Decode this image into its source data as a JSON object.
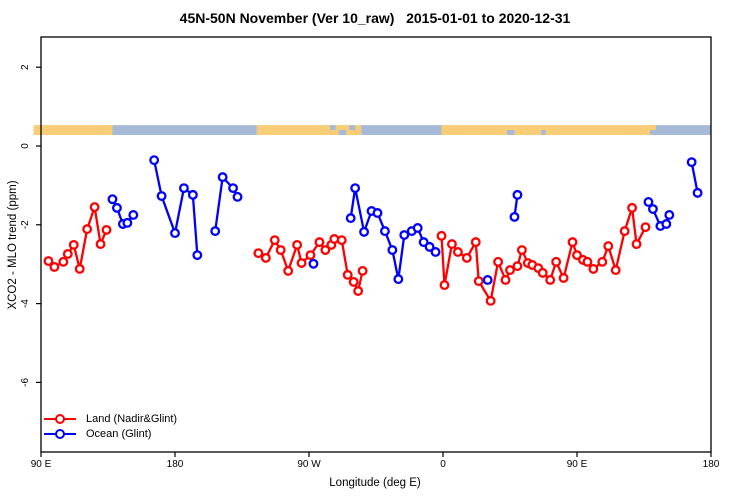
{
  "chart_data": {
    "type": "line",
    "title": "45N-50N November (Ver 10_raw)   2015-01-01 to 2020-12-31",
    "xlabel": "Longitude (deg E)",
    "ylabel": "XCO2 - MLO trend (ppm)",
    "x_axis": {
      "range_deg": [
        90,
        540
      ],
      "ticks": [
        {
          "t": 90,
          "label": "90 E"
        },
        {
          "t": 180,
          "label": "180"
        },
        {
          "t": 270,
          "label": "90 W"
        },
        {
          "t": 360,
          "label": "0"
        },
        {
          "t": 450,
          "label": "90 E"
        },
        {
          "t": 540,
          "label": "180"
        }
      ]
    },
    "y_axis": {
      "range": [
        -7.8,
        2.8
      ],
      "ticks": [
        {
          "v": 2,
          "label": "2"
        },
        {
          "v": 0,
          "label": "0"
        },
        {
          "v": -2,
          "label": "-2"
        },
        {
          "v": -4,
          "label": "-4"
        },
        {
          "v": -6,
          "label": "-6"
        }
      ]
    },
    "map_strip": {
      "v_range": [
        0.28,
        0.53
      ],
      "land_color": "#F9CD76",
      "ocean_color": "#A6BAD8",
      "segments": [
        {
          "type": "land",
          "from": 85,
          "to": 138
        },
        {
          "type": "ocean",
          "from": 138,
          "to": 235
        },
        {
          "type": "land",
          "from": 235,
          "to": 305
        },
        {
          "type": "ocean",
          "from": 305,
          "to": 359
        },
        {
          "type": "land",
          "from": 359,
          "to": 499
        },
        {
          "type": "ocean",
          "from": 499,
          "to": 540
        }
      ],
      "patches": [
        {
          "type": "ocean",
          "from": 284,
          "to": 288,
          "pos": "top"
        },
        {
          "type": "ocean",
          "from": 290,
          "to": 295,
          "pos": "bottom"
        },
        {
          "type": "ocean",
          "from": 297,
          "to": 301,
          "pos": "top"
        },
        {
          "type": "ocean",
          "from": 403,
          "to": 408,
          "pos": "bottom"
        },
        {
          "type": "ocean",
          "from": 426,
          "to": 429,
          "pos": "bottom"
        },
        {
          "type": "land",
          "from": 499,
          "to": 503,
          "pos": "top"
        }
      ]
    },
    "series": [
      {
        "name": "Land (Nadir&Glint)",
        "color": "#ff0000",
        "segments": [
          [
            [
              95,
              -2.92
            ],
            [
              99,
              -3.07
            ],
            [
              105,
              -2.94
            ],
            [
              108,
              -2.74
            ],
            [
              112,
              -2.51
            ],
            [
              116,
              -3.12
            ],
            [
              121,
              -2.11
            ],
            [
              126,
              -1.55
            ],
            [
              130,
              -2.49
            ],
            [
              134,
              -2.13
            ]
          ],
          [
            [
              236,
              -2.72
            ],
            [
              241,
              -2.84
            ],
            [
              247,
              -2.39
            ],
            [
              251,
              -2.64
            ],
            [
              256,
              -3.17
            ],
            [
              262,
              -2.51
            ],
            [
              265,
              -2.97
            ],
            [
              271,
              -2.77
            ],
            [
              277,
              -2.44
            ],
            [
              281,
              -2.64
            ],
            [
              285,
              -2.51
            ],
            [
              287,
              -2.36
            ],
            [
              292,
              -2.39
            ],
            [
              296,
              -3.27
            ],
            [
              300,
              -3.45
            ],
            [
              303,
              -3.68
            ],
            [
              306,
              -3.17
            ]
          ],
          [
            [
              359,
              -2.28
            ],
            [
              361,
              -3.53
            ],
            [
              366,
              -2.49
            ],
            [
              370,
              -2.69
            ],
            [
              376,
              -2.84
            ],
            [
              382,
              -2.44
            ],
            [
              384,
              -3.43
            ],
            [
              392,
              -3.93
            ],
            [
              397,
              -2.94
            ],
            [
              402,
              -3.4
            ],
            [
              405,
              -3.15
            ],
            [
              410,
              -3.05
            ],
            [
              413,
              -2.64
            ],
            [
              417,
              -2.97
            ],
            [
              420,
              -3.02
            ],
            [
              424,
              -3.1
            ],
            [
              427,
              -3.22
            ],
            [
              432,
              -3.4
            ],
            [
              436,
              -2.94
            ],
            [
              441,
              -3.35
            ],
            [
              447,
              -2.44
            ],
            [
              450,
              -2.77
            ],
            [
              454,
              -2.89
            ],
            [
              457,
              -2.94
            ],
            [
              461,
              -3.12
            ],
            [
              467,
              -2.94
            ],
            [
              471,
              -2.54
            ],
            [
              476,
              -3.15
            ],
            [
              482,
              -2.16
            ],
            [
              487,
              -1.57
            ],
            [
              490,
              -2.49
            ],
            [
              496,
              -2.06
            ]
          ]
        ]
      },
      {
        "name": "Ocean (Glint)",
        "color": "#0000ff",
        "segments": [
          [
            [
              138,
              -1.35
            ],
            [
              141,
              -1.57
            ],
            [
              145,
              -1.98
            ],
            [
              148,
              -1.95
            ],
            [
              152,
              -1.75
            ]
          ],
          [
            [
              166,
              -0.36
            ],
            [
              171,
              -1.27
            ],
            [
              180,
              -2.21
            ],
            [
              186,
              -1.07
            ],
            [
              192,
              -1.24
            ],
            [
              195,
              -2.77
            ]
          ],
          [
            [
              207,
              -2.16
            ],
            [
              212,
              -0.79
            ],
            [
              219,
              -1.07
            ],
            [
              222,
              -1.29
            ]
          ],
          [
            [
              273,
              -2.99
            ]
          ],
          [
            [
              298,
              -1.83
            ],
            [
              301,
              -1.07
            ],
            [
              307,
              -2.18
            ],
            [
              312,
              -1.65
            ],
            [
              316,
              -1.7
            ],
            [
              321,
              -2.16
            ],
            [
              326,
              -2.64
            ],
            [
              330,
              -3.38
            ],
            [
              334,
              -2.26
            ],
            [
              339,
              -2.16
            ],
            [
              343,
              -2.08
            ],
            [
              347,
              -2.44
            ],
            [
              351,
              -2.56
            ],
            [
              355,
              -2.69
            ]
          ],
          [
            [
              390,
              -3.4
            ]
          ],
          [
            [
              408,
              -1.8
            ],
            [
              410,
              -1.24
            ]
          ],
          [
            [
              498,
              -1.42
            ],
            [
              501,
              -1.6
            ],
            [
              506,
              -2.03
            ],
            [
              510,
              -1.98
            ],
            [
              512,
              -1.75
            ]
          ],
          [
            [
              527,
              -0.41
            ],
            [
              531,
              -1.19
            ]
          ]
        ]
      }
    ]
  }
}
